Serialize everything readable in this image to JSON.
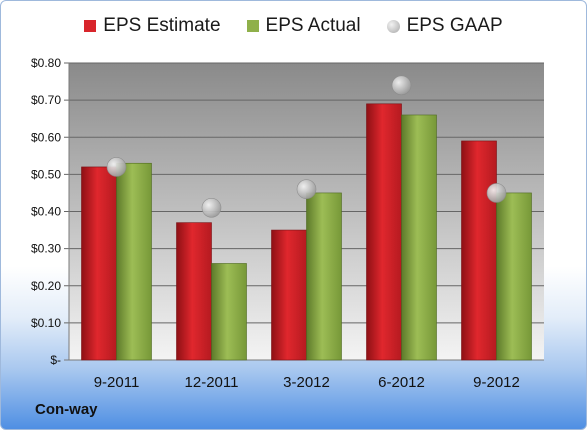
{
  "legend": {
    "estimate": "EPS Estimate",
    "actual": "EPS Actual",
    "gaap": "EPS GAAP"
  },
  "company": "Con-way",
  "colors": {
    "estimate": "#d8252b",
    "actual": "#8fb04a",
    "gaap": "#b8b8b8",
    "plot_top": "#888888",
    "plot_bottom": "#f4f4f4"
  },
  "chart_data": {
    "type": "bar",
    "categories": [
      "9-2011",
      "12-2011",
      "3-2012",
      "6-2012",
      "9-2012"
    ],
    "series": [
      {
        "name": "EPS Estimate",
        "values": [
          0.52,
          0.37,
          0.35,
          0.69,
          0.59
        ]
      },
      {
        "name": "EPS Actual",
        "values": [
          0.53,
          0.26,
          0.45,
          0.66,
          0.45
        ]
      },
      {
        "name": "EPS GAAP",
        "values": [
          0.52,
          0.41,
          0.46,
          0.74,
          0.45
        ],
        "marker": "circle"
      }
    ],
    "ylim": [
      0,
      0.8
    ],
    "yticks": [
      0,
      0.1,
      0.2,
      0.3,
      0.4,
      0.5,
      0.6,
      0.7,
      0.8
    ],
    "ytick_labels": [
      "$-",
      "$0.10",
      "$0.20",
      "$0.30",
      "$0.40",
      "$0.50",
      "$0.60",
      "$0.70",
      "$0.80"
    ],
    "grid": true,
    "legend_position": "top"
  }
}
